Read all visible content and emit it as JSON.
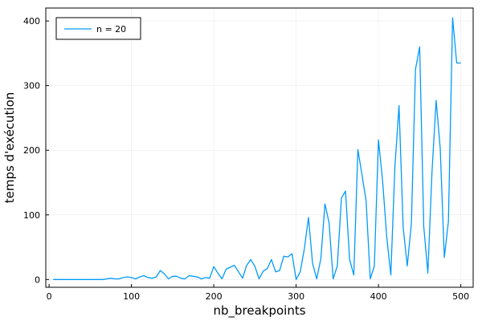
{
  "chart_data": {
    "type": "line",
    "xlabel": "nb_breakpoints",
    "ylabel": "temps d'exécution",
    "xlim": [
      -4,
      515
    ],
    "ylim": [
      -12,
      420
    ],
    "xticks": [
      0,
      100,
      200,
      300,
      400,
      500
    ],
    "yticks": [
      0,
      100,
      200,
      300,
      400
    ],
    "grid": true,
    "legend_position": "top-left",
    "series_color": "#009AFA",
    "series": [
      {
        "name": "n = 20",
        "x": [
          5,
          10,
          15,
          20,
          25,
          30,
          35,
          40,
          45,
          50,
          55,
          60,
          65,
          70,
          75,
          80,
          85,
          90,
          95,
          100,
          105,
          110,
          115,
          120,
          125,
          130,
          135,
          140,
          145,
          150,
          155,
          160,
          165,
          170,
          175,
          180,
          185,
          190,
          195,
          200,
          205,
          210,
          215,
          220,
          225,
          230,
          235,
          240,
          245,
          250,
          255,
          260,
          265,
          270,
          275,
          280,
          285,
          290,
          295,
          300,
          305,
          310,
          315,
          320,
          325,
          330,
          335,
          340,
          345,
          350,
          355,
          360,
          365,
          370,
          375,
          380,
          385,
          390,
          395,
          400,
          405,
          410,
          415,
          420,
          425,
          430,
          435,
          440,
          445,
          450,
          455,
          460,
          465,
          470,
          475,
          480,
          485,
          490,
          495,
          500
        ],
        "y": [
          0,
          0,
          0,
          0,
          0,
          0,
          0,
          0,
          0,
          0,
          0,
          0,
          0,
          1,
          2,
          1,
          1,
          3,
          4,
          3,
          1,
          4,
          6,
          3,
          2,
          4,
          14,
          9,
          1,
          5,
          5,
          2,
          1,
          6,
          5,
          4,
          1,
          3,
          2,
          20,
          10,
          1,
          16,
          19,
          22,
          12,
          2,
          22,
          31,
          20,
          1,
          13,
          17,
          31,
          12,
          14,
          36,
          35,
          40,
          0,
          12,
          48,
          96,
          25,
          1,
          32,
          117,
          88,
          1,
          21,
          126,
          137,
          31,
          7,
          201,
          162,
          122,
          1,
          21,
          216,
          154,
          66,
          7,
          175,
          269,
          80,
          21,
          87,
          325,
          360,
          82,
          10,
          165,
          277,
          203,
          34,
          90,
          405,
          335,
          335
        ]
      }
    ]
  }
}
